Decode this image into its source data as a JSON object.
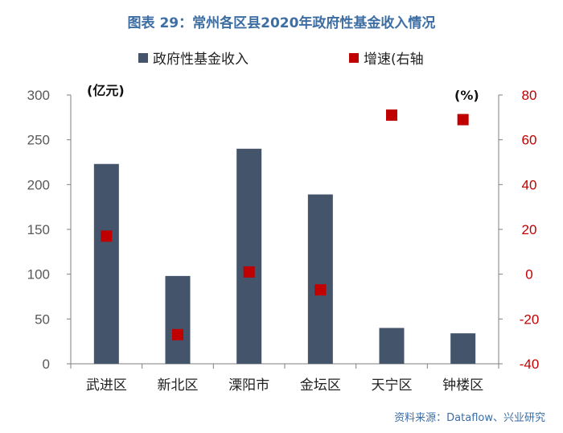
{
  "title": "图表 29：常州各区县2020年政府性基金收入情况",
  "source": "资料来源：Dataflow、兴业研究",
  "colors": {
    "bar": "#44546a",
    "marker": "#c00000",
    "axis_left": "#595959",
    "axis_right": "#c00000",
    "title": "#3d6ea3"
  },
  "chart_data": {
    "type": "bar",
    "categories": [
      "武进区",
      "新北区",
      "溧阳市",
      "金坛区",
      "天宁区",
      "钟楼区"
    ],
    "series": [
      {
        "name": "政府性基金收入",
        "type": "bar",
        "axis": "left",
        "values": [
          223,
          98,
          240,
          189,
          40,
          34
        ]
      },
      {
        "name": "增速(右轴",
        "type": "scatter",
        "axis": "right",
        "values": [
          17,
          -27,
          1,
          -7,
          71,
          69
        ]
      }
    ],
    "left_axis": {
      "unit_label": "(亿元)",
      "ylim": [
        0,
        300
      ],
      "ticks": [
        "0",
        "50",
        "100",
        "150",
        "200",
        "250",
        "300"
      ]
    },
    "right_axis": {
      "unit_label": "(%)",
      "ylim": [
        -40,
        80
      ],
      "ticks": [
        "-40",
        "-20",
        "0",
        "20",
        "40",
        "60",
        "80"
      ]
    },
    "legend": {
      "position": "top"
    },
    "grid": false
  }
}
